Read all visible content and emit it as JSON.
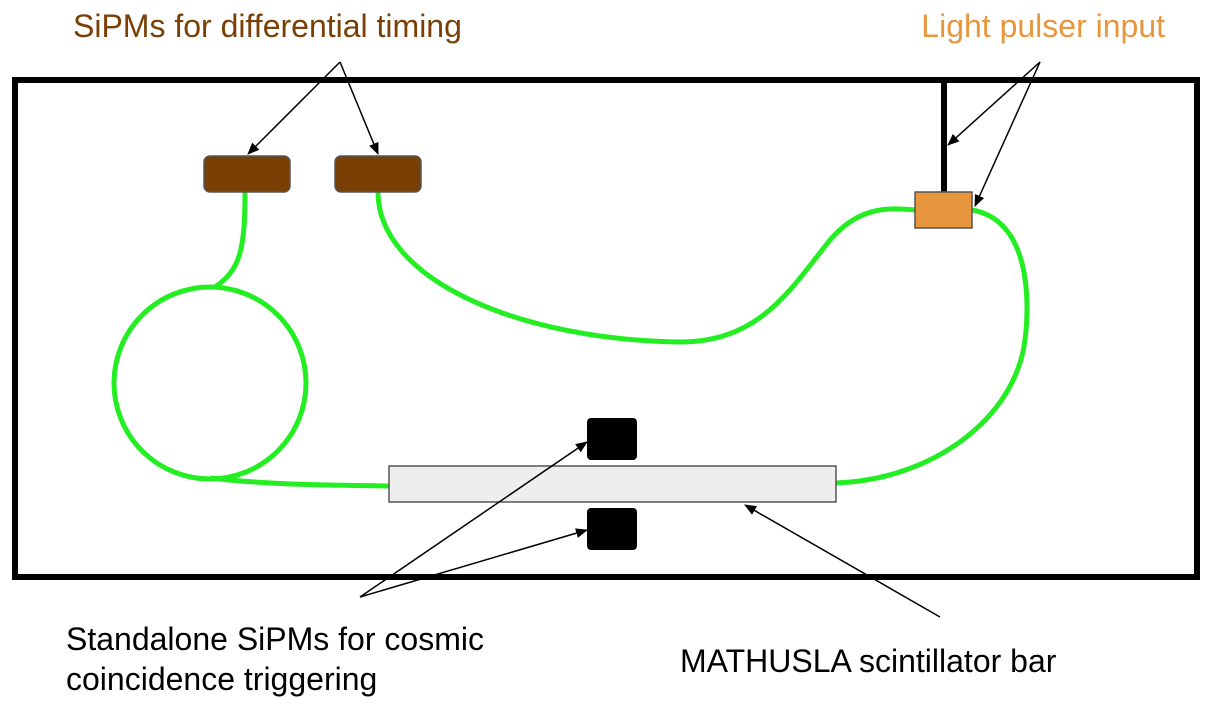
{
  "labels": {
    "sipm_timing": "SiPMs for differential timing",
    "light_pulser": "Light pulser input",
    "standalone": [
      "Standalone SiPMs for cosmic",
      "coincidence triggering"
    ],
    "bar": "MATHUSLA scintillator bar"
  }
}
